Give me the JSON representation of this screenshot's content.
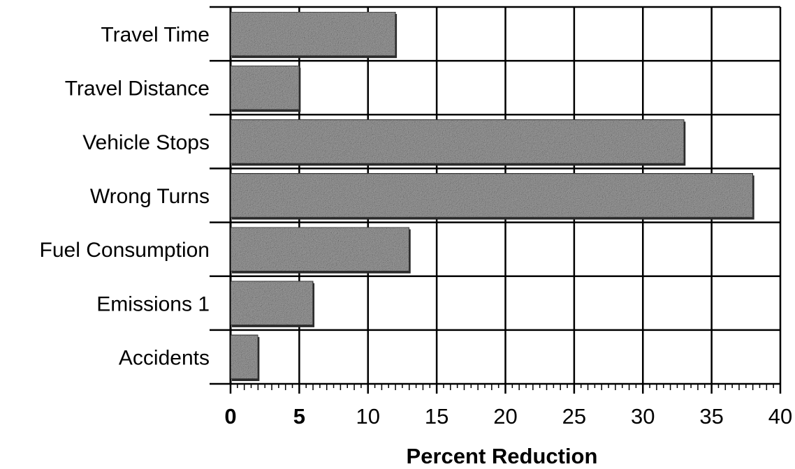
{
  "chart_data": {
    "type": "bar",
    "orientation": "horizontal",
    "title": "",
    "xlabel": "Percent Reduction",
    "ylabel": "",
    "categories": [
      "Travel Time",
      "Travel Distance",
      "Vehicle Stops",
      "Wrong Turns",
      "Fuel Consumption",
      "Emissions 1",
      "Accidents"
    ],
    "values": [
      12,
      5,
      33,
      38,
      13,
      6,
      2
    ],
    "xlim": [
      0,
      40
    ],
    "xticks": [
      "0",
      "5",
      "10",
      "15",
      "20",
      "25",
      "30",
      "35",
      "40"
    ],
    "grid": true,
    "legend": "none",
    "bar_color": "#9a9a9a"
  }
}
